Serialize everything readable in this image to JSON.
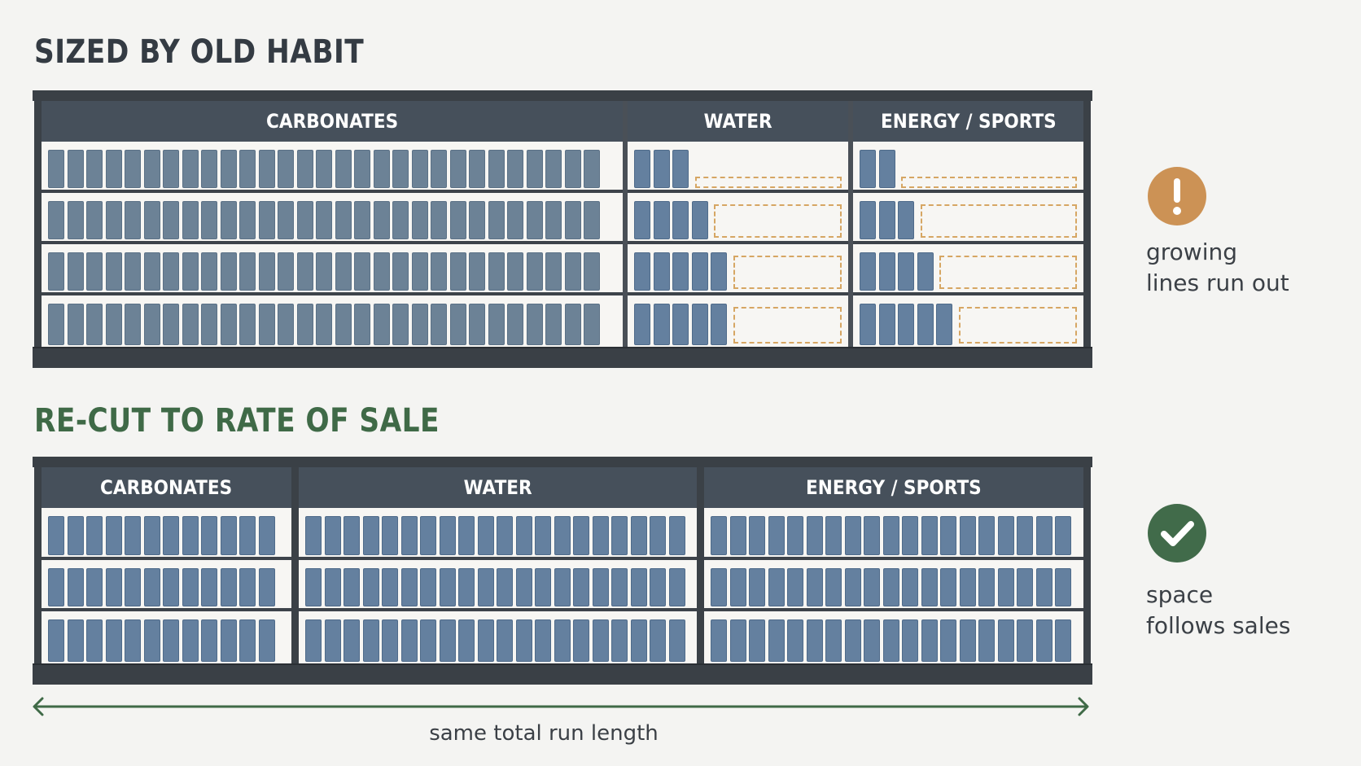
{
  "sections": [
    {
      "title": "SIZED BY OLD HABIT",
      "title_color": "#343b43",
      "bays": [
        {
          "label": "CARBONATES",
          "fill": [
            1,
            1,
            1,
            1
          ]
        },
        {
          "label": "WATER",
          "fill": [
            0.3,
            0.32,
            0.45,
            0.45
          ]
        },
        {
          "label": "ENERGY / SPORTS",
          "fill": [
            0.19,
            0.3,
            0.37,
            0.42
          ]
        }
      ],
      "callout": {
        "icon": "exclamation-icon",
        "color": "#cc9255",
        "lines": [
          "growing",
          "lines run out"
        ]
      }
    },
    {
      "title": "RE-CUT TO RATE OF SALE",
      "title_color": "#3f6a47",
      "bays": [
        {
          "label": "CARBONATES",
          "fill": [
            1,
            1,
            1
          ]
        },
        {
          "label": "WATER",
          "fill": [
            1,
            1,
            1
          ]
        },
        {
          "label": "ENERGY / SPORTS",
          "fill": [
            1,
            1,
            1
          ]
        }
      ],
      "callout": {
        "icon": "check-icon",
        "color": "#416b4a",
        "lines": [
          "space",
          "follows sales"
        ]
      }
    }
  ],
  "span_label": "same total run length",
  "colors": {
    "pack": "#64809f",
    "fixture": "#3a4046",
    "gap_outline": "#d6a663",
    "arrow": "#3f6a47"
  }
}
